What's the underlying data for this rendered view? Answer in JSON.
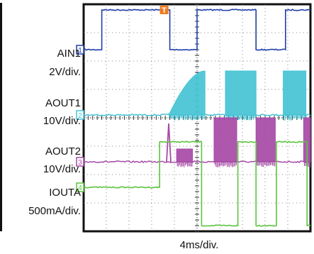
{
  "chart_data": {
    "type": "line",
    "title": "",
    "x_scale": "4ms/div.",
    "x_divisions": 10,
    "y_divisions": 8,
    "grid": true,
    "trigger_marker": "T",
    "series": [
      {
        "name": "AIN1",
        "label_lines": [
          "AIN1",
          "2V/div."
        ],
        "marker": "1",
        "color": "#1f3fa8",
        "kind": "square",
        "baseline_div": 6.4,
        "high_div": 7.8,
        "segments": [
          [
            0.0,
            0.8,
            0
          ],
          [
            0.8,
            3.8,
            1
          ],
          [
            3.8,
            5.0,
            0
          ],
          [
            5.0,
            7.6,
            1
          ],
          [
            7.6,
            8.9,
            0
          ],
          [
            8.9,
            10.0,
            1
          ]
        ]
      },
      {
        "name": "AOUT1",
        "label_lines": [
          "AOUT1",
          "10V/div."
        ],
        "marker": "2",
        "color": "#46c3d4",
        "kind": "burst",
        "baseline_div": 4.1,
        "bursts": [
          {
            "start": 3.75,
            "end": 5.35,
            "peak_start": 4.5,
            "peak_end": 5.65,
            "ramp": true
          },
          {
            "start": 6.25,
            "end": 7.6,
            "peak_start": 5.65,
            "peak_end": 5.65,
            "ramp": false
          },
          {
            "start": 8.8,
            "end": 9.8,
            "peak_start": 5.65,
            "peak_end": 5.65,
            "ramp": false
          }
        ]
      },
      {
        "name": "AOUT2",
        "label_lines": [
          "AOUT2",
          "10V/div."
        ],
        "marker": "3",
        "color": "#a64aa6",
        "kind": "burst",
        "baseline_div": 2.45,
        "spike": {
          "x": 3.75,
          "peak": 3.8
        },
        "bursts": [
          {
            "start": 4.1,
            "end": 4.8,
            "peak_start": 2.9,
            "peak_end": 2.9,
            "ramp": false
          },
          {
            "start": 5.75,
            "end": 6.75,
            "peak_start": 4.0,
            "peak_end": 4.0,
            "ramp": false
          },
          {
            "start": 7.6,
            "end": 8.45,
            "peak_start": 4.0,
            "peak_end": 4.0,
            "ramp": false
          },
          {
            "start": 9.7,
            "end": 10.0,
            "peak_start": 4.0,
            "peak_end": 4.0,
            "ramp": false
          }
        ]
      },
      {
        "name": "IOUTA",
        "label_lines": [
          "IOUTA",
          "500mA/div."
        ],
        "marker": "4",
        "color": "#5cc43e",
        "kind": "square",
        "baseline_div": 1.55,
        "high_div": 3.15,
        "low_div": 0.2,
        "segments": [
          [
            0.0,
            3.35,
            1.55
          ],
          [
            3.35,
            5.2,
            3.15
          ],
          [
            5.2,
            6.8,
            0.2
          ],
          [
            6.8,
            7.6,
            3.15
          ],
          [
            7.6,
            8.5,
            0.2
          ],
          [
            8.5,
            9.85,
            3.15
          ],
          [
            9.85,
            10.0,
            0.2
          ]
        ]
      }
    ]
  }
}
